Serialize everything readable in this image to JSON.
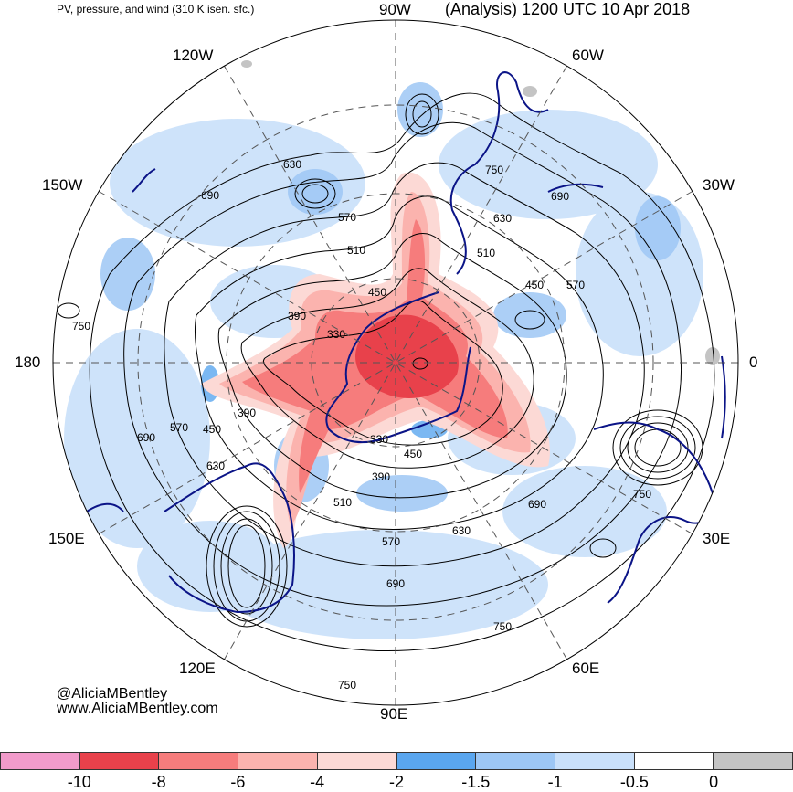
{
  "header": {
    "product": "PV, pressure, and wind (310 K isen. sfc.)",
    "valid": "(Analysis) 1200 UTC 10 Apr 2018"
  },
  "map": {
    "projection": "north polar stereographic",
    "longitude_labels": {
      "top": "90W",
      "upper_left": "120W",
      "upper_right": "60W",
      "left_upper": "150W",
      "right_upper": "30W",
      "left": "180",
      "right": "0",
      "left_lower": "150E",
      "right_lower": "30E",
      "lower_left": "120E",
      "lower_right": "60E",
      "bottom": "90E"
    },
    "pressure_contour_labels": [
      "630",
      "690",
      "570",
      "510",
      "450",
      "390",
      "330",
      "750",
      "630",
      "690",
      "510",
      "450",
      "570",
      "750",
      "390",
      "570",
      "450",
      "690",
      "630",
      "330",
      "450",
      "390",
      "510",
      "690",
      "630",
      "570",
      "690",
      "750",
      "750",
      "750"
    ],
    "colors": {
      "pv_neg10": "#f29bcb",
      "pv_neg8": "#e8414b",
      "pv_neg6": "#f67c7c",
      "pv_neg4": "#fbb3ae",
      "pv_neg2": "#fcd9d5",
      "pv_neg1_5": "#5aa6ef",
      "pv_neg1": "#9dc7f5",
      "pv_neg0_5": "#c9e0fa",
      "pv_zero": "#ffffff",
      "pv_pos": "#c4c4c4",
      "coastline": "#0b1487",
      "contour": "#000000"
    }
  },
  "credit": {
    "handle": "@AliciaMBentley",
    "url": "www.AliciaMBentley.com"
  },
  "colorbar": {
    "colors": [
      "#f29bcb",
      "#e8414b",
      "#f67c7c",
      "#fbb3ae",
      "#fcd9d5",
      "#5aa6ef",
      "#9dc7f5",
      "#c9e0fa",
      "#ffffff",
      "#c4c4c4"
    ],
    "ticks": [
      "-10",
      "-8",
      "-6",
      "-4",
      "-2",
      "-1.5",
      "-1",
      "-0.5",
      "0"
    ]
  }
}
